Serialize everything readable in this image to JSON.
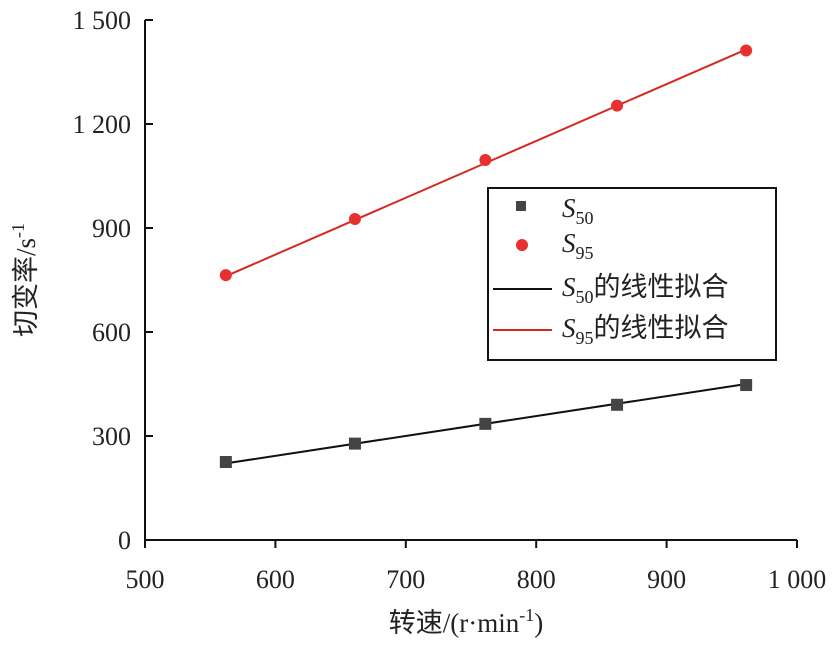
{
  "chart_data": {
    "type": "scatter",
    "xlabel": "转速/(r·min",
    "xlabel_sup": "-1",
    "xlabel_suffix": ")",
    "ylabel": "切变率/s",
    "ylabel_sup": "-1",
    "xlim": [
      500,
      1000
    ],
    "ylim": [
      0,
      1500
    ],
    "xticks": [
      500,
      600,
      700,
      800,
      900,
      1000
    ],
    "yticks": [
      0,
      300,
      600,
      900,
      1200,
      1500
    ],
    "xtick_labels": [
      "500",
      "600",
      "700",
      "800",
      "900",
      "1 000"
    ],
    "ytick_labels": [
      "0",
      "300",
      "600",
      "900",
      "1 200",
      "1 500"
    ],
    "legend_position": "right-middle",
    "series": [
      {
        "name": "S",
        "name_sub": "50",
        "marker": "square",
        "color": "#444444",
        "x": [
          562,
          661,
          761,
          862,
          961
        ],
        "y": [
          225,
          278,
          335,
          390,
          447
        ]
      },
      {
        "name": "S",
        "name_sub": "95",
        "marker": "circle",
        "color": "#e83030",
        "x": [
          562,
          661,
          761,
          862,
          961
        ],
        "y": [
          764,
          926,
          1096,
          1253,
          1412
        ]
      }
    ],
    "fits": [
      {
        "name": "S",
        "name_sub": "50",
        "suffix": "的线性拟合",
        "color": "#111111",
        "x": [
          562,
          961
        ],
        "y": [
          221,
          450
        ]
      },
      {
        "name": "S",
        "name_sub": "95",
        "suffix": "的线性拟合",
        "color": "#d42a22",
        "x": [
          562,
          961
        ],
        "y": [
          761,
          1415
        ]
      }
    ]
  }
}
